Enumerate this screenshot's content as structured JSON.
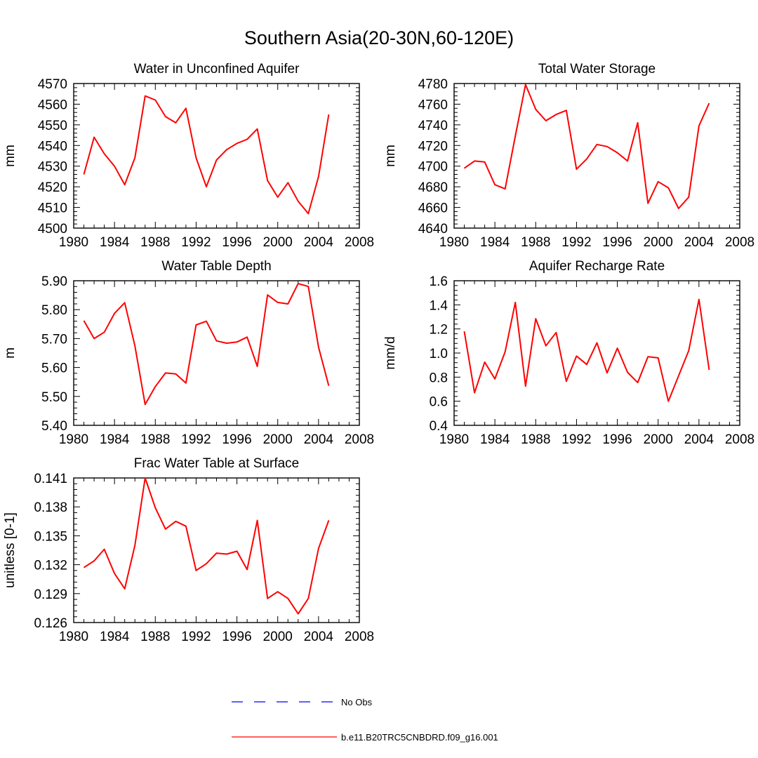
{
  "page_title": "Southern Asia(20-30N,60-120E)",
  "colors": {
    "model": "#ff0000",
    "obs": "#0000ff",
    "axis": "#000000"
  },
  "legend": {
    "obs_label": "No Obs",
    "model_label": "b.e11.B20TRC5CNBDRD.f09_g16.001"
  },
  "chart_data": [
    {
      "type": "line",
      "title": "Water in Unconfined Aquifer",
      "xlabel": "",
      "ylabel": "mm",
      "xlim": [
        1980,
        2008
      ],
      "ylim": [
        4500,
        4570
      ],
      "xticks": [
        1980,
        1984,
        1988,
        1992,
        1996,
        2000,
        2004,
        2008
      ],
      "yticks": [
        4500,
        4510,
        4520,
        4530,
        4540,
        4550,
        4560,
        4570
      ],
      "ytick_labels": [
        "4500",
        "4510",
        "4520",
        "4530",
        "4540",
        "4550",
        "4560",
        "4570"
      ],
      "x": [
        1981,
        1982,
        1983,
        1984,
        1985,
        1986,
        1987,
        1988,
        1989,
        1990,
        1991,
        1992,
        1993,
        1994,
        1995,
        1996,
        1997,
        1998,
        1999,
        2000,
        2001,
        2002,
        2003,
        2004,
        2005
      ],
      "series": [
        {
          "name": "b.e11.B20TRC5CNBDRD.f09_g16.001",
          "values": [
            4526,
            4544,
            4536,
            4530,
            4521,
            4534,
            4564,
            4562,
            4554,
            4551,
            4558,
            4534,
            4520,
            4533,
            4538,
            4541,
            4543,
            4548,
            4523,
            4515,
            4522,
            4513,
            4507,
            4525,
            4555
          ]
        }
      ]
    },
    {
      "type": "line",
      "title": "Total Water Storage",
      "xlabel": "",
      "ylabel": "mm",
      "xlim": [
        1980,
        2008
      ],
      "ylim": [
        4640,
        4780
      ],
      "xticks": [
        1980,
        1984,
        1988,
        1992,
        1996,
        2000,
        2004,
        2008
      ],
      "yticks": [
        4640,
        4660,
        4680,
        4700,
        4720,
        4740,
        4760,
        4780
      ],
      "ytick_labels": [
        "4640",
        "4660",
        "4680",
        "4700",
        "4720",
        "4740",
        "4760",
        "4780"
      ],
      "x": [
        1981,
        1982,
        1983,
        1984,
        1985,
        1986,
        1987,
        1988,
        1989,
        1990,
        1991,
        1992,
        1993,
        1994,
        1995,
        1996,
        1997,
        1998,
        1999,
        2000,
        2001,
        2002,
        2003,
        2004,
        2005
      ],
      "series": [
        {
          "name": "b.e11.B20TRC5CNBDRD.f09_g16.001",
          "values": [
            4698,
            4705,
            4704,
            4682,
            4678,
            4729,
            4779,
            4755,
            4744,
            4750,
            4754,
            4697,
            4707,
            4721,
            4719,
            4713,
            4705,
            4742,
            4664,
            4685,
            4679,
            4659,
            4670,
            4739,
            4761
          ]
        }
      ]
    },
    {
      "type": "line",
      "title": "Water Table Depth",
      "xlabel": "",
      "ylabel": "m",
      "xlim": [
        1980,
        2008
      ],
      "ylim": [
        5.4,
        5.9
      ],
      "xticks": [
        1980,
        1984,
        1988,
        1992,
        1996,
        2000,
        2004,
        2008
      ],
      "yticks": [
        5.4,
        5.5,
        5.6,
        5.7,
        5.8,
        5.9
      ],
      "ytick_labels": [
        "5.40",
        "5.50",
        "5.60",
        "5.70",
        "5.80",
        "5.90"
      ],
      "x": [
        1981,
        1982,
        1983,
        1984,
        1985,
        1986,
        1987,
        1988,
        1989,
        1990,
        1991,
        1992,
        1993,
        1994,
        1995,
        1996,
        1997,
        1998,
        1999,
        2000,
        2001,
        2002,
        2003,
        2004,
        2005
      ],
      "series": [
        {
          "name": "b.e11.B20TRC5CNBDRD.f09_g16.001",
          "values": [
            5.762,
            5.7,
            5.722,
            5.787,
            5.824,
            5.675,
            5.472,
            5.534,
            5.581,
            5.578,
            5.546,
            5.747,
            5.76,
            5.692,
            5.684,
            5.688,
            5.705,
            5.604,
            5.851,
            5.825,
            5.82,
            5.89,
            5.88,
            5.67,
            5.537
          ]
        }
      ]
    },
    {
      "type": "line",
      "title": "Aquifer Recharge Rate",
      "xlabel": "",
      "ylabel": "mm/d",
      "xlim": [
        1980,
        2008
      ],
      "ylim": [
        0.4,
        1.6
      ],
      "xticks": [
        1980,
        1984,
        1988,
        1992,
        1996,
        2000,
        2004,
        2008
      ],
      "yticks": [
        0.4,
        0.6,
        0.8,
        1.0,
        1.2,
        1.4,
        1.6
      ],
      "ytick_labels": [
        "0.4",
        "0.6",
        "0.8",
        "1.0",
        "1.2",
        "1.4",
        "1.6"
      ],
      "x": [
        1981,
        1982,
        1983,
        1984,
        1985,
        1986,
        1987,
        1988,
        1989,
        1990,
        1991,
        1992,
        1993,
        1994,
        1995,
        1996,
        1997,
        1998,
        1999,
        2000,
        2001,
        2002,
        2003,
        2004,
        2005
      ],
      "series": [
        {
          "name": "b.e11.B20TRC5CNBDRD.f09_g16.001",
          "values": [
            1.18,
            0.67,
            0.925,
            0.785,
            1.01,
            1.42,
            0.725,
            1.285,
            1.06,
            1.17,
            0.765,
            0.975,
            0.905,
            1.085,
            0.835,
            1.04,
            0.84,
            0.755,
            0.97,
            0.96,
            0.6,
            0.81,
            1.02,
            1.445,
            0.86
          ]
        }
      ]
    },
    {
      "type": "line",
      "title": "Frac Water Table at Surface",
      "xlabel": "",
      "ylabel": "unitless [0-1]",
      "xlim": [
        1980,
        2008
      ],
      "ylim": [
        0.126,
        0.141
      ],
      "xticks": [
        1980,
        1984,
        1988,
        1992,
        1996,
        2000,
        2004,
        2008
      ],
      "yticks": [
        0.126,
        0.129,
        0.132,
        0.135,
        0.138,
        0.141
      ],
      "ytick_labels": [
        "0.126",
        "0.129",
        "0.132",
        "0.135",
        "0.138",
        "0.141"
      ],
      "x": [
        1981,
        1982,
        1983,
        1984,
        1985,
        1986,
        1987,
        1988,
        1989,
        1990,
        1991,
        1992,
        1993,
        1994,
        1995,
        1996,
        1997,
        1998,
        1999,
        2000,
        2001,
        2002,
        2003,
        2004,
        2005
      ],
      "series": [
        {
          "name": "b.e11.B20TRC5CNBDRD.f09_g16.001",
          "values": [
            0.1317,
            0.1324,
            0.1336,
            0.1311,
            0.1295,
            0.134,
            0.141,
            0.1379,
            0.1357,
            0.1365,
            0.136,
            0.1314,
            0.1321,
            0.1332,
            0.1331,
            0.1334,
            0.1315,
            0.1366,
            0.1285,
            0.1292,
            0.1285,
            0.1269,
            0.1285,
            0.1337,
            0.1366
          ]
        }
      ]
    }
  ]
}
